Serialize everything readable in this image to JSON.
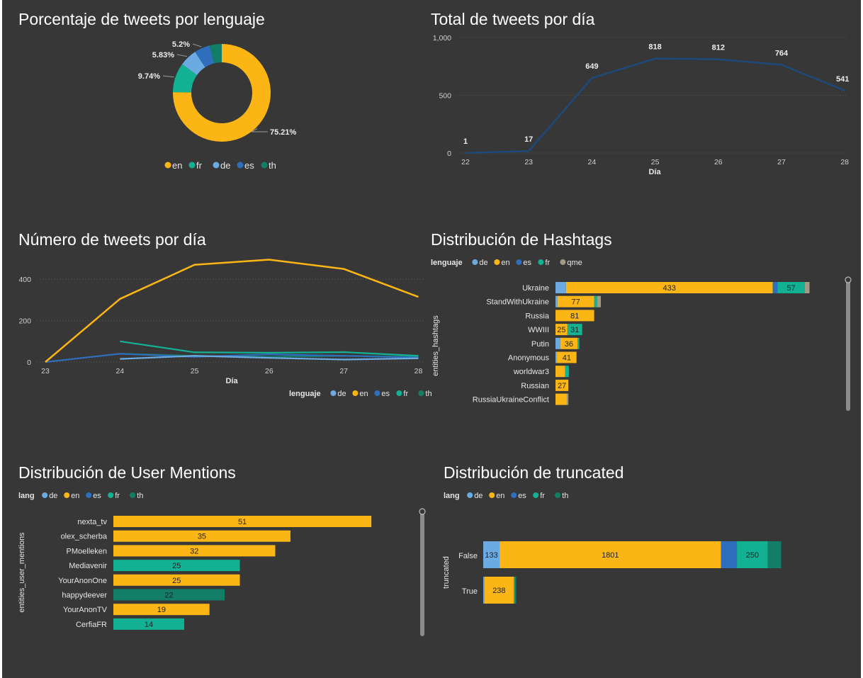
{
  "colors": {
    "en": "#fbb615",
    "fr": "#13b193",
    "de": "#6cabe2",
    "es": "#2d6fbc",
    "th": "#127e68",
    "qme": "#a39a84"
  },
  "chart_data": [
    {
      "type": "pie",
      "title": "Porcentaje de tweets por lenguaje",
      "slices": [
        {
          "key": "en",
          "label": "75.21%",
          "value": 75.21
        },
        {
          "key": "fr",
          "label": "9.74%",
          "value": 9.74
        },
        {
          "key": "de",
          "label": "5.83%",
          "value": 5.83
        },
        {
          "key": "es",
          "label": "5.2%",
          "value": 5.2
        },
        {
          "key": "th",
          "label": "",
          "value": 4.02
        }
      ],
      "legend": [
        "en",
        "fr",
        "de",
        "es",
        "th"
      ]
    },
    {
      "type": "line",
      "title": "Total de tweets por día",
      "xlabel": "Día",
      "ylabel": "",
      "x": [
        22,
        23,
        24,
        25,
        26,
        27,
        28
      ],
      "values": [
        1,
        17,
        649,
        818,
        812,
        764,
        541
      ],
      "labels": [
        "1",
        "17",
        "649",
        "818",
        "812",
        "764",
        "541"
      ],
      "yticks": [
        "0",
        "500",
        "1,000"
      ],
      "ylim": [
        0,
        1000
      ]
    },
    {
      "type": "line",
      "title": "Número de tweets por día",
      "xlabel": "Día",
      "ylabel": "",
      "x": [
        23,
        24,
        25,
        26,
        27,
        28
      ],
      "yticks": [
        "0",
        "200",
        "400"
      ],
      "ylim": [
        0,
        400
      ],
      "legend_title": "lenguaje",
      "legend": [
        "de",
        "en",
        "es",
        "fr",
        "th"
      ],
      "series": [
        {
          "name": "en",
          "values": [
            0,
            305,
            470,
            495,
            450,
            315
          ]
        },
        {
          "name": "fr",
          "values": [
            null,
            100,
            47,
            45,
            48,
            30
          ]
        },
        {
          "name": "th",
          "values": [
            null,
            40,
            30,
            25,
            30,
            25
          ]
        },
        {
          "name": "es",
          "values": [
            0,
            40,
            25,
            37,
            30,
            22
          ]
        },
        {
          "name": "de",
          "values": [
            null,
            15,
            30,
            20,
            12,
            18
          ]
        }
      ]
    },
    {
      "type": "bar",
      "title": "Distribución de Hashtags",
      "ylabel": "entities_hashtags",
      "legend_title": "lenguaje",
      "legend": [
        "de",
        "en",
        "es",
        "fr",
        "qme"
      ],
      "categories": [
        "Ukraine",
        "StandWithUkraine",
        "Russia",
        "WWIII",
        "Putin",
        "Anonymous",
        "worldwar3",
        "Russian",
        "RussiaUkraineConflict"
      ],
      "series": [
        {
          "name": "de",
          "values": [
            22,
            4,
            0,
            0,
            10,
            3,
            0,
            0,
            0
          ]
        },
        {
          "name": "en",
          "values": [
            433,
            77,
            81,
            25,
            36,
            41,
            20,
            27,
            24
          ]
        },
        {
          "name": "es",
          "values": [
            10,
            0,
            0,
            0,
            0,
            0,
            0,
            0,
            0
          ]
        },
        {
          "name": "fr",
          "values": [
            57,
            6,
            0,
            31,
            4,
            0,
            8,
            0,
            0
          ]
        },
        {
          "name": "qme",
          "values": [
            10,
            8,
            0,
            0,
            0,
            0,
            0,
            0,
            3
          ]
        }
      ],
      "labels": [
        "433",
        "57",
        "77",
        "81",
        "25",
        "31",
        "36",
        "41",
        "27"
      ]
    },
    {
      "type": "bar",
      "title": "Distribución de User Mentions",
      "ylabel": "entities_user_mentions",
      "legend_title": "lang",
      "legend": [
        "de",
        "en",
        "es",
        "fr",
        "th"
      ],
      "categories": [
        "nexta_tv",
        "olex_scherba",
        "PMoelleken",
        "Mediavenir",
        "YourAnonOne",
        "happydeever",
        "YourAnonTV",
        "CerfiaFR"
      ],
      "values": [
        51,
        35,
        32,
        25,
        25,
        22,
        19,
        14
      ],
      "langs": [
        "en",
        "en",
        "en",
        "fr",
        "en",
        "th",
        "en",
        "fr"
      ],
      "labels": [
        "51",
        "35",
        "32",
        "25",
        "25",
        "22",
        "19",
        "14"
      ]
    },
    {
      "type": "bar",
      "title": "Distribución de truncated",
      "ylabel": "truncated",
      "legend_title": "lang",
      "legend": [
        "de",
        "en",
        "es",
        "fr",
        "th"
      ],
      "categories": [
        "False",
        "True"
      ],
      "series": [
        {
          "name": "de",
          "values": [
            133,
            10
          ]
        },
        {
          "name": "en",
          "values": [
            1801,
            238
          ]
        },
        {
          "name": "es",
          "values": [
            130,
            0
          ]
        },
        {
          "name": "fr",
          "values": [
            250,
            10
          ]
        },
        {
          "name": "th",
          "values": [
            110,
            10
          ]
        }
      ],
      "labels": [
        "133",
        "1801",
        "250",
        "238"
      ]
    }
  ]
}
